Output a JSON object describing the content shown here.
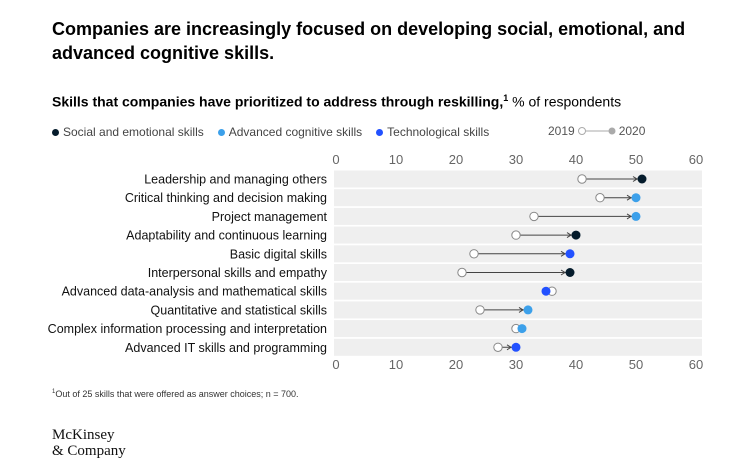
{
  "title": "Companies are increasingly focused on developing social, emotional, and advanced cognitive skills.",
  "subtitle_bold": "Skills that companies have prioritized to address through reskilling,",
  "subtitle_sup": "1",
  "subtitle_rest": " % of respondents",
  "legend": {
    "social": "Social and emotional skills",
    "cognitive": "Advanced cognitive skills",
    "tech": "Technological skills",
    "year_from": "2019",
    "year_to": "2020"
  },
  "colors": {
    "social": "#051c2c",
    "cognitive": "#3ca0ea",
    "tech": "#2251ff",
    "band": "#efefef",
    "hollow": "#888888"
  },
  "chart_data": {
    "type": "dumbbell",
    "xlim": [
      0,
      60
    ],
    "xticks": [
      "0",
      "10",
      "20",
      "30",
      "40",
      "50",
      "60"
    ],
    "series_names": [
      "2019",
      "2020"
    ],
    "rows": [
      {
        "label": "Leadership and managing others",
        "category": "social",
        "y2019": 41,
        "y2020": 51
      },
      {
        "label": "Critical thinking and decision making",
        "category": "cognitive",
        "y2019": 44,
        "y2020": 50
      },
      {
        "label": "Project management",
        "category": "cognitive",
        "y2019": 33,
        "y2020": 50
      },
      {
        "label": "Adaptability and continuous learning",
        "category": "social",
        "y2019": 30,
        "y2020": 40
      },
      {
        "label": "Basic digital skills",
        "category": "tech",
        "y2019": 23,
        "y2020": 39
      },
      {
        "label": "Interpersonal skills and empathy",
        "category": "social",
        "y2019": 21,
        "y2020": 39
      },
      {
        "label": "Advanced data-analysis and mathematical skills",
        "category": "tech",
        "y2019": 36,
        "y2020": 35
      },
      {
        "label": "Quantitative and statistical skills",
        "category": "cognitive",
        "y2019": 24,
        "y2020": 32
      },
      {
        "label": "Complex information processing and interpretation",
        "category": "cognitive",
        "y2019": 30,
        "y2020": 31
      },
      {
        "label": "Advanced IT skills and programming",
        "category": "tech",
        "y2019": 27,
        "y2020": 30
      }
    ]
  },
  "footnote_sup": "1",
  "footnote": "Out of 25 skills that were offered as answer choices; n = 700.",
  "logo_line1": "McKinsey",
  "logo_line2": "& Company"
}
